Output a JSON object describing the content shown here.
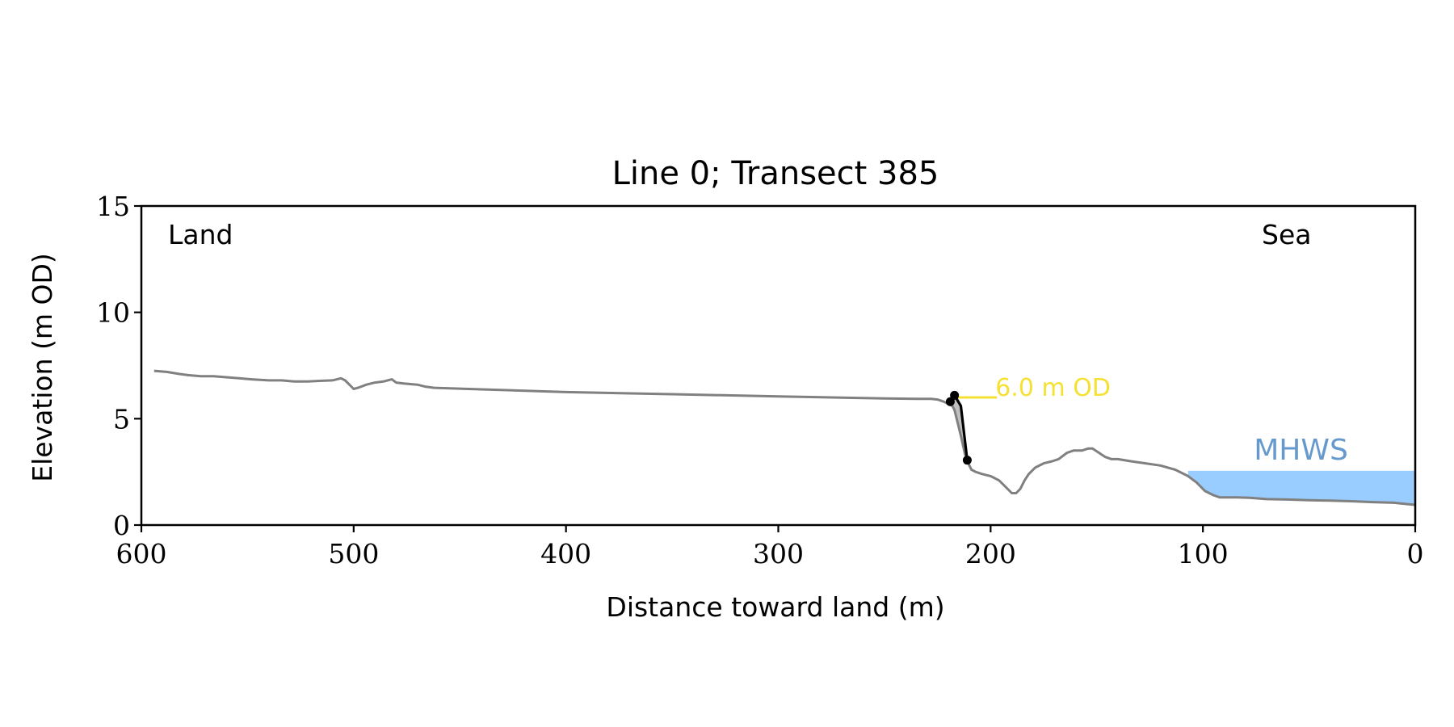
{
  "chart_data": {
    "type": "line",
    "title": "Line 0; Transect 385",
    "xlabel": "Distance toward land (m)",
    "ylabel": "Elevation (m OD)",
    "xlim": [
      600,
      0
    ],
    "ylim": [
      0,
      15
    ],
    "x_ticks": [
      600,
      500,
      400,
      300,
      200,
      100,
      0
    ],
    "y_ticks": [
      0,
      5,
      10,
      15
    ],
    "grid": false,
    "corner_labels": {
      "left": "Land",
      "right": "Sea"
    },
    "colors": {
      "profile": "#808080",
      "cliff": "#000000",
      "cliff_fill": "#c0c0c0",
      "threshold": "#f5e133",
      "mhws_fill": "#99ccff",
      "mhws_text": "#6699cc"
    },
    "series": [
      {
        "type": "line",
        "x": [
          594,
          588,
          582,
          578,
          572,
          566,
          560,
          554,
          548,
          540,
          534,
          528,
          522,
          516,
          510,
          506,
          504,
          502,
          500,
          498,
          494,
          490,
          486,
          482,
          480,
          476,
          470,
          466,
          462,
          440,
          400,
          350,
          300,
          250,
          235,
          228,
          225,
          222,
          220,
          218,
          217,
          216,
          214,
          212,
          210,
          209,
          207,
          204,
          200,
          196,
          193,
          190,
          188,
          186,
          184,
          182,
          179,
          175,
          171,
          168,
          164,
          161,
          157,
          154,
          152,
          149,
          146,
          143,
          140,
          134,
          127,
          120,
          113,
          107,
          103,
          99,
          95,
          92,
          89,
          84,
          78,
          70,
          60,
          50,
          40,
          30,
          20,
          10,
          5,
          0
        ],
        "y": [
          7.25,
          7.2,
          7.1,
          7.05,
          7.0,
          7.0,
          6.95,
          6.9,
          6.85,
          6.8,
          6.8,
          6.75,
          6.75,
          6.78,
          6.8,
          6.9,
          6.8,
          6.6,
          6.4,
          6.45,
          6.6,
          6.7,
          6.75,
          6.85,
          6.7,
          6.65,
          6.6,
          6.5,
          6.45,
          6.38,
          6.25,
          6.15,
          6.05,
          5.95,
          5.93,
          5.93,
          5.9,
          5.8,
          5.7,
          5.6,
          5.4,
          5.0,
          4.2,
          3.3,
          2.8,
          2.6,
          2.5,
          2.4,
          2.3,
          2.1,
          1.8,
          1.5,
          1.5,
          1.7,
          2.1,
          2.4,
          2.7,
          2.9,
          3.0,
          3.1,
          3.4,
          3.5,
          3.5,
          3.6,
          3.6,
          3.4,
          3.2,
          3.1,
          3.1,
          3.0,
          2.9,
          2.8,
          2.6,
          2.3,
          2.0,
          1.6,
          1.4,
          1.3,
          1.3,
          1.3,
          1.28,
          1.22,
          1.2,
          1.17,
          1.15,
          1.12,
          1.08,
          1.05,
          1.0,
          0.95
        ]
      },
      {
        "name": "cliff",
        "type": "line-markers",
        "x": [
          219,
          217,
          214,
          211
        ],
        "y": [
          5.8,
          6.1,
          5.6,
          3.05
        ]
      },
      {
        "name": "6.0 m OD",
        "type": "threshold",
        "x": [
          217,
          197
        ],
        "y": [
          6.0,
          6.0
        ]
      },
      {
        "name": "MHWS",
        "type": "level",
        "x": [
          107,
          0
        ],
        "y": [
          2.55,
          2.55
        ]
      }
    ],
    "annotations": [
      "6.0 m OD",
      "MHWS"
    ]
  }
}
